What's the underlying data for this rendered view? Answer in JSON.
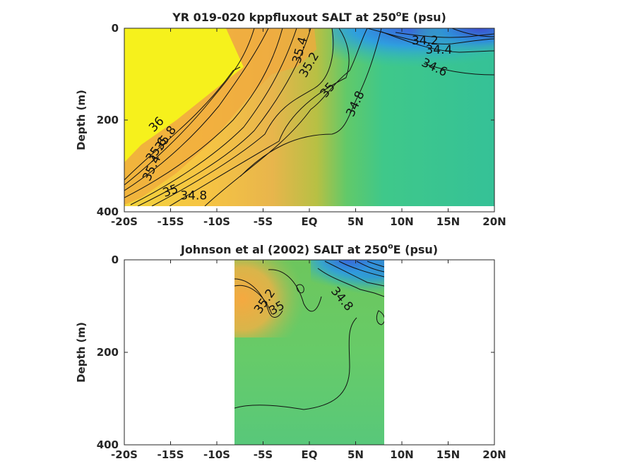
{
  "chart_data": [
    {
      "type": "heatmap",
      "title_parts": [
        "YR 019-020 kppfluxout SALT at 250",
        "o",
        "E (psu)"
      ],
      "ylabel": "Depth (m)",
      "xlim": [
        -20,
        20
      ],
      "ylim": [
        400,
        0
      ],
      "xticks": [
        -20,
        -15,
        -10,
        -5,
        0,
        5,
        10,
        15,
        20
      ],
      "xtick_labels": [
        "-20S",
        "-15S",
        "-10S",
        "-5S",
        "EQ",
        "5N",
        "10N",
        "15N",
        "20N"
      ],
      "yticks": [
        0,
        200,
        400
      ],
      "ytick_labels": [
        "0",
        "200",
        "400"
      ],
      "data_x_extent": [
        -20,
        20
      ],
      "data_depth_extent": [
        0,
        385
      ],
      "contour_labels": [
        {
          "text": "34.2",
          "x": 12.5,
          "y": 28,
          "angle": 0
        },
        {
          "text": "34.4",
          "x": 14.0,
          "y": 48,
          "angle": 0
        },
        {
          "text": "34.6",
          "x": 13.5,
          "y": 86,
          "angle": 25
        },
        {
          "text": "35.4",
          "x": -1.0,
          "y": 48,
          "angle": -75
        },
        {
          "text": "35.2",
          "x": 0.0,
          "y": 80,
          "angle": -60
        },
        {
          "text": "35",
          "x": 2.0,
          "y": 135,
          "angle": -50
        },
        {
          "text": "34.8",
          "x": 5.0,
          "y": 165,
          "angle": -65
        },
        {
          "text": "36",
          "x": -16.5,
          "y": 210,
          "angle": -45
        },
        {
          "text": "35.8",
          "x": -15.5,
          "y": 240,
          "angle": -55
        },
        {
          "text": "35.6",
          "x": -16.5,
          "y": 265,
          "angle": -55
        },
        {
          "text": "35.4",
          "x": -17.0,
          "y": 305,
          "angle": -65
        },
        {
          "text": "35",
          "x": -15.0,
          "y": 355,
          "angle": -20
        },
        {
          "text": "34.8",
          "x": -12.5,
          "y": 365,
          "angle": 0
        }
      ]
    },
    {
      "type": "heatmap",
      "title_parts": [
        "Johnson et al (2002) SALT at 250",
        "o",
        "E (psu)"
      ],
      "ylabel": "Depth (m)",
      "xlim": [
        -20,
        20
      ],
      "ylim": [
        400,
        0
      ],
      "xticks": [
        -20,
        -15,
        -10,
        -5,
        0,
        5,
        10,
        15,
        20
      ],
      "xtick_labels": [
        "-20S",
        "-15S",
        "-10S",
        "-5S",
        "EQ",
        "5N",
        "10N",
        "15N",
        "20N"
      ],
      "yticks": [
        0,
        200,
        400
      ],
      "ytick_labels": [
        "0",
        "200",
        "400"
      ],
      "data_x_extent": [
        -8,
        8
      ],
      "data_depth_extent": [
        0,
        400
      ],
      "contour_labels": [
        {
          "text": "35.2",
          "x": -4.8,
          "y": 90,
          "angle": -55
        },
        {
          "text": "35",
          "x": -3.5,
          "y": 105,
          "angle": -30
        },
        {
          "text": "34.8",
          "x": 3.5,
          "y": 85,
          "angle": 50
        }
      ]
    }
  ]
}
